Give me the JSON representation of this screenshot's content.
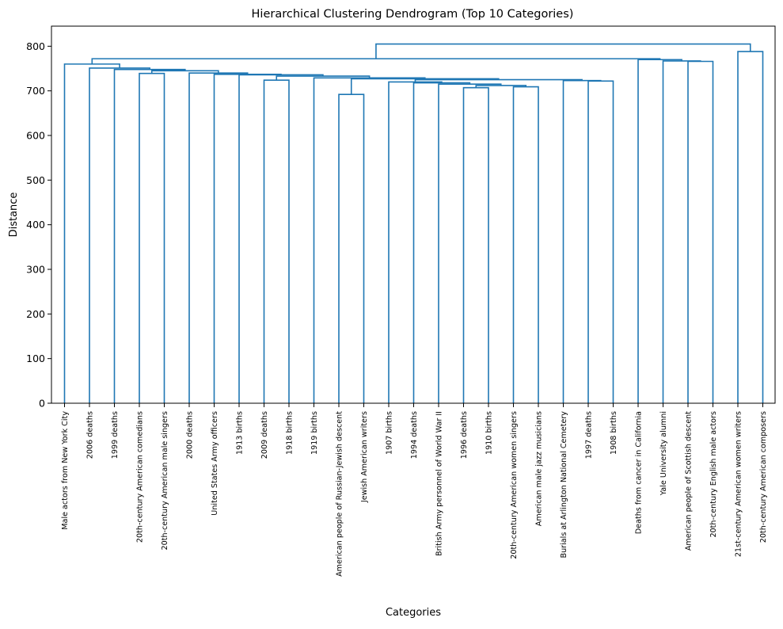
{
  "chart_data": {
    "type": "dendrogram",
    "title": "Hierarchical Clustering Dendrogram (Top 10 Categories)",
    "xlabel": "Categories",
    "ylabel": "Distance",
    "ylim": [
      0,
      845
    ],
    "yticks": [
      0,
      100,
      200,
      300,
      400,
      500,
      600,
      700,
      800
    ],
    "grid": false,
    "line_color": "#1f77b4",
    "leaves": [
      "Male actors from New York City",
      "2006 deaths",
      "1999 deaths",
      "20th-century American comedians",
      "20th-century American male singers",
      "2000 deaths",
      "United States Army officers",
      "1913 births",
      "2009 deaths",
      "1918 births",
      "1919 births",
      "American people of Russian-Jewish descent",
      "Jewish American writers",
      "1907 births",
      "1994 deaths",
      "British Army personnel of World War II",
      "1996 deaths",
      "1910 births",
      "20th-century American women singers",
      "American male jazz musicians",
      "Burials at Arlington National Cemetery",
      "1997 deaths",
      "1908 births",
      "Deaths from cancer in California",
      "Yale University alumni",
      "American people of Scottish descent",
      "20th-century English male actors",
      "21st-century American women writers",
      "20th-century American composers"
    ],
    "merges": [
      {
        "id": "n1",
        "left": 11,
        "right": 12,
        "height": 692
      },
      {
        "id": "n2",
        "left": 16,
        "right": 17,
        "height": 707
      },
      {
        "id": "n3",
        "left": 18,
        "right": 19,
        "height": 709
      },
      {
        "id": "n4",
        "left": "n2",
        "right": "n3",
        "height": 712
      },
      {
        "id": "n5",
        "left": 15,
        "right": "n4",
        "height": 715
      },
      {
        "id": "n6",
        "left": 14,
        "right": "n5",
        "height": 718
      },
      {
        "id": "n7",
        "left": 13,
        "right": "n6",
        "height": 720
      },
      {
        "id": "n8",
        "left": 21,
        "right": 22,
        "height": 722
      },
      {
        "id": "n9",
        "left": 20,
        "right": "n8",
        "height": 723
      },
      {
        "id": "n10",
        "left": 8,
        "right": 9,
        "height": 724
      },
      {
        "id": "n11",
        "left": "n7",
        "right": "n9",
        "height": 725
      },
      {
        "id": "n12",
        "left": "n1",
        "right": "n11",
        "height": 727
      },
      {
        "id": "n13",
        "left": 10,
        "right": "n12",
        "height": 729
      },
      {
        "id": "n14",
        "left": "n10",
        "right": "n13",
        "height": 733
      },
      {
        "id": "n15",
        "left": 7,
        "right": "n14",
        "height": 736
      },
      {
        "id": "n16",
        "left": 6,
        "right": "n15",
        "height": 737
      },
      {
        "id": "n17",
        "left": 3,
        "right": 4,
        "height": 739
      },
      {
        "id": "n18",
        "left": 5,
        "right": "n16",
        "height": 740
      },
      {
        "id": "n19",
        "left": "n17",
        "right": "n18",
        "height": 745
      },
      {
        "id": "n20",
        "left": 2,
        "right": "n19",
        "height": 748
      },
      {
        "id": "n21",
        "left": 1,
        "right": "n20",
        "height": 751
      },
      {
        "id": "n22",
        "left": 0,
        "right": "n21",
        "height": 760
      },
      {
        "id": "n23",
        "left": 25,
        "right": 26,
        "height": 766
      },
      {
        "id": "n24",
        "left": 24,
        "right": "n23",
        "height": 767
      },
      {
        "id": "n25",
        "left": 23,
        "right": "n24",
        "height": 770
      },
      {
        "id": "n26",
        "left": "n22",
        "right": "n25",
        "height": 772
      },
      {
        "id": "n27",
        "left": 27,
        "right": 28,
        "height": 788
      },
      {
        "id": "n28",
        "left": "n26",
        "right": "n27",
        "height": 805
      }
    ]
  }
}
